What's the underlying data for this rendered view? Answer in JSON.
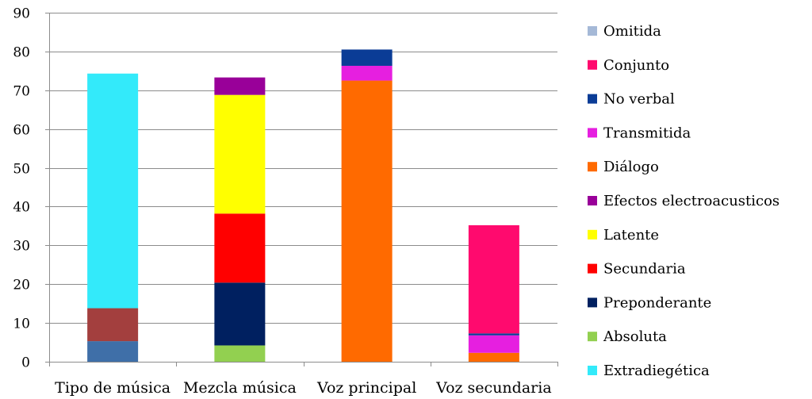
{
  "chart_data": {
    "type": "bar",
    "stacked": true,
    "categories": [
      "Tipo de música",
      "Mezcla música",
      "Voz principal",
      "Voz secundaria"
    ],
    "ylim": [
      0,
      90
    ],
    "yticks": [
      0,
      10,
      20,
      30,
      40,
      50,
      60,
      70,
      80,
      90
    ],
    "grid": true,
    "legend_position": "right",
    "series": [
      {
        "name": "Extradiegética",
        "color": "#33EAFA",
        "values": [
          60.5,
          0,
          0,
          0
        ]
      },
      {
        "name": "Absoluta",
        "color": "#92D050",
        "values": [
          0,
          4.2,
          0,
          0
        ]
      },
      {
        "name": "Preponderante",
        "color": "#002060",
        "values": [
          0,
          16.2,
          0,
          0
        ]
      },
      {
        "name": "Secundaria",
        "color": "#FF0000",
        "values": [
          0,
          17.8,
          0,
          0
        ]
      },
      {
        "name": "Latente",
        "color": "#FFFF00",
        "values": [
          0,
          30.6,
          0,
          0
        ]
      },
      {
        "name": "Efectos electroacusticos",
        "color": "#990099",
        "values": [
          0,
          4.5,
          0,
          0
        ]
      },
      {
        "name": "Diálogo",
        "color": "#FF6A00",
        "values": [
          0,
          0,
          72.5,
          2.3
        ]
      },
      {
        "name": "Transmitida",
        "color": "#E61FE0",
        "values": [
          0,
          0,
          3.8,
          4.5
        ]
      },
      {
        "name": "No verbal",
        "color": "#0A3C96",
        "values": [
          0,
          0,
          4.2,
          0.5
        ]
      },
      {
        "name": "Conjunto",
        "color": "#FF0A6E",
        "values": [
          0,
          0,
          0,
          27.9
        ]
      },
      {
        "name": "Omitida",
        "color": "#A5B9D7",
        "values": [
          0,
          0,
          0,
          0
        ]
      }
    ],
    "extra_segments": [
      {
        "category_index": 0,
        "color": "#3F6FA8",
        "from": 0,
        "to": 5.3
      },
      {
        "category_index": 0,
        "color": "#A33F3E",
        "from": 5.3,
        "to": 13.8
      }
    ],
    "legend_order": [
      "Omitida",
      "Conjunto",
      "No verbal",
      "Transmitida",
      "Diálogo",
      "Efectos electroacusticos",
      "Latente",
      "Secundaria",
      "Preponderante",
      "Absoluta",
      "Extradiegética"
    ]
  }
}
